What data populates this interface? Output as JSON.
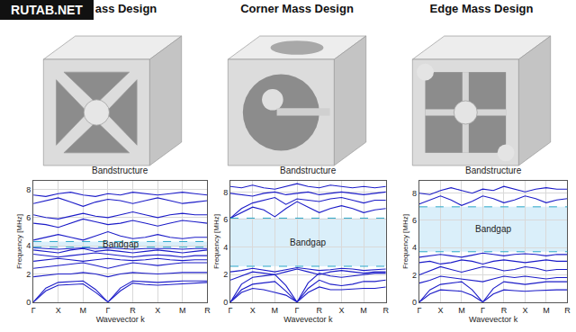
{
  "watermark": "RUTAB.NET",
  "chart_data": [
    {
      "type": "line",
      "design_title": "ass Design",
      "title": "Bandstructure",
      "x_label": "Wavevector k",
      "y_label": "Frequency [MHz]",
      "x": [
        0,
        0.5,
        1,
        1.5,
        2,
        2.5,
        3,
        3.5,
        4,
        4.5,
        5,
        5.5,
        6,
        6.5,
        7
      ],
      "xlim": [
        0,
        7
      ],
      "xticks": [
        {
          "value": 0,
          "label": "Γ"
        },
        {
          "value": 1,
          "label": "X"
        },
        {
          "value": 2,
          "label": "M"
        },
        {
          "value": 3,
          "label": "Γ"
        },
        {
          "value": 4,
          "label": "R"
        },
        {
          "value": 5,
          "label": "X"
        },
        {
          "value": 6,
          "label": "M"
        },
        {
          "value": 7,
          "label": "R"
        }
      ],
      "ylim": [
        0,
        8.6
      ],
      "yticks": [
        0,
        2,
        4,
        6,
        8
      ],
      "grid": true,
      "bandgap": {
        "label": "Bandgap",
        "range": [
          3.9,
          4.3
        ]
      },
      "series": [
        {
          "color": "#1c1cc8",
          "values": [
            0,
            0.8,
            1.2,
            1.25,
            1.3,
            0.7,
            0,
            0.8,
            1.35,
            1.25,
            1.2,
            1.25,
            1.3,
            1.35,
            1.4
          ]
        },
        {
          "color": "#1c1cc8",
          "values": [
            0,
            1.0,
            1.4,
            1.45,
            1.5,
            0.9,
            0,
            1.0,
            1.5,
            1.45,
            1.4,
            1.45,
            1.5,
            1.5,
            1.5
          ]
        },
        {
          "color": "#1c1cc8",
          "values": [
            1.8,
            1.9,
            2.0,
            2.0,
            2.1,
            2.0,
            1.8,
            2.0,
            2.1,
            2.05,
            2.0,
            2.05,
            2.1,
            2.1,
            2.1
          ]
        },
        {
          "color": "#1c1cc8",
          "values": [
            2.4,
            2.5,
            2.6,
            2.7,
            2.8,
            2.6,
            2.4,
            2.6,
            2.8,
            2.7,
            2.6,
            2.7,
            2.8,
            2.8,
            2.8
          ]
        },
        {
          "color": "#1c1cc8",
          "values": [
            2.9,
            3.0,
            3.1,
            3.0,
            2.9,
            3.0,
            3.1,
            3.0,
            2.95,
            3.0,
            3.1,
            3.0,
            2.95,
            3.0,
            3.0
          ]
        },
        {
          "color": "#1c1cc8",
          "values": [
            3.4,
            3.3,
            3.2,
            3.3,
            3.4,
            3.5,
            3.4,
            3.3,
            3.2,
            3.3,
            3.35,
            3.3,
            3.2,
            3.3,
            3.3
          ]
        },
        {
          "color": "#1c1cc8",
          "values": [
            3.7,
            3.6,
            3.5,
            3.7,
            3.8,
            3.6,
            3.7,
            3.6,
            3.5,
            3.6,
            3.7,
            3.6,
            3.5,
            3.6,
            3.7
          ]
        },
        {
          "color": "#1c1cc8",
          "values": [
            3.85,
            3.8,
            3.75,
            3.8,
            3.85,
            3.8,
            3.85,
            3.8,
            3.75,
            3.8,
            3.8,
            3.8,
            3.75,
            3.8,
            3.8
          ]
        },
        {
          "color": "#1c1cc8",
          "values": [
            4.4,
            4.6,
            4.8,
            4.6,
            4.4,
            4.7,
            5.0,
            4.7,
            4.5,
            4.6,
            4.8,
            4.6,
            4.5,
            4.6,
            4.6
          ]
        },
        {
          "color": "#1c1cc8",
          "values": [
            5.6,
            5.5,
            5.3,
            5.6,
            5.9,
            5.7,
            5.5,
            5.6,
            5.8,
            5.6,
            5.4,
            5.6,
            5.8,
            5.7,
            5.6
          ]
        },
        {
          "color": "#1c1cc8",
          "values": [
            6.2,
            6.0,
            5.9,
            6.1,
            6.3,
            6.1,
            6.0,
            6.2,
            6.4,
            6.2,
            6.0,
            6.2,
            6.3,
            6.2,
            6.2
          ]
        },
        {
          "color": "#1c1cc8",
          "values": [
            7.0,
            7.2,
            7.4,
            7.1,
            6.8,
            7.1,
            7.3,
            7.2,
            7.0,
            7.2,
            7.4,
            7.2,
            7.0,
            7.1,
            7.2
          ]
        },
        {
          "color": "#1c1cc8",
          "values": [
            7.6,
            7.5,
            7.7,
            7.8,
            7.6,
            7.5,
            7.7,
            7.6,
            7.8,
            7.7,
            7.6,
            7.7,
            7.8,
            7.7,
            7.6
          ]
        }
      ]
    },
    {
      "type": "line",
      "design_title": "Corner Mass Design",
      "title": "Bandstructure",
      "x_label": "Wavevector k",
      "y_label": "Frequency [MHz]",
      "x": [
        0,
        0.5,
        1,
        1.5,
        2,
        2.5,
        3,
        3.5,
        4,
        4.5,
        5,
        5.5,
        6,
        6.5,
        7
      ],
      "xlim": [
        0,
        7
      ],
      "xticks": [
        {
          "value": 0,
          "label": "Γ"
        },
        {
          "value": 1,
          "label": "X"
        },
        {
          "value": 2,
          "label": "M"
        },
        {
          "value": 3,
          "label": "Γ"
        },
        {
          "value": 4,
          "label": "R"
        },
        {
          "value": 5,
          "label": "X"
        },
        {
          "value": 6,
          "label": "M"
        },
        {
          "value": 7,
          "label": "R"
        }
      ],
      "ylim": [
        0,
        8.8
      ],
      "yticks": [
        0,
        2,
        4,
        6,
        8
      ],
      "grid": true,
      "bandgap": {
        "label": "Bandgap",
        "range": [
          2.6,
          6.1
        ]
      },
      "series": [
        {
          "color": "#1c1cc8",
          "values": [
            0,
            0.7,
            1.0,
            0.9,
            0.7,
            0.5,
            0,
            0.7,
            1.1,
            0.9,
            0.9,
            0.95,
            1.0,
            1.0,
            1.1
          ]
        },
        {
          "color": "#1c1cc8",
          "values": [
            0,
            0.9,
            1.3,
            1.4,
            1.5,
            0.8,
            0,
            1.0,
            1.6,
            1.3,
            1.2,
            1.3,
            1.5,
            1.5,
            1.6
          ]
        },
        {
          "color": "#1c1cc8",
          "values": [
            0,
            1.3,
            1.8,
            1.9,
            2.0,
            1.2,
            0,
            1.4,
            2.1,
            1.9,
            1.8,
            1.9,
            2.0,
            2.1,
            2.1
          ]
        },
        {
          "color": "#1c1cc8",
          "values": [
            1.6,
            1.9,
            2.2,
            2.1,
            2.0,
            2.2,
            2.4,
            2.2,
            2.0,
            2.2,
            2.3,
            2.2,
            2.1,
            2.2,
            2.2
          ]
        },
        {
          "color": "#1c1cc8",
          "values": [
            2.2,
            2.3,
            2.45,
            2.3,
            2.2,
            2.35,
            2.5,
            2.4,
            2.3,
            2.35,
            2.45,
            2.4,
            2.3,
            2.35,
            2.4
          ]
        },
        {
          "color": "#1c1cc8",
          "values": [
            6.1,
            6.5,
            6.9,
            6.7,
            6.2,
            6.8,
            7.3,
            6.9,
            6.5,
            6.8,
            7.0,
            6.8,
            6.5,
            6.7,
            6.8
          ]
        },
        {
          "color": "#1c1cc8",
          "values": [
            6.1,
            6.8,
            7.2,
            7.4,
            7.6,
            7.1,
            7.5,
            7.4,
            7.3,
            7.5,
            7.6,
            7.4,
            7.2,
            7.4,
            7.4
          ]
        },
        {
          "color": "#1c1cc8",
          "values": [
            7.9,
            7.8,
            7.7,
            7.9,
            8.0,
            7.8,
            7.9,
            8.0,
            7.8,
            7.9,
            8.0,
            7.9,
            7.8,
            7.9,
            8.0
          ]
        },
        {
          "color": "#1c1cc8",
          "values": [
            8.4,
            8.3,
            8.5,
            8.3,
            8.2,
            8.4,
            8.6,
            8.4,
            8.3,
            8.5,
            8.4,
            8.3,
            8.4,
            8.3,
            8.4
          ]
        }
      ]
    },
    {
      "type": "line",
      "design_title": "Edge Mass Design",
      "title": "Bandstructure",
      "x_label": "Wavevector k",
      "y_label": "Frequency [MHz]",
      "x": [
        0,
        0.5,
        1,
        1.5,
        2,
        2.5,
        3,
        3.5,
        4,
        4.5,
        5,
        5.5,
        6,
        6.5,
        7
      ],
      "xlim": [
        0,
        7
      ],
      "xticks": [
        {
          "value": 0,
          "label": "Γ"
        },
        {
          "value": 1,
          "label": "X"
        },
        {
          "value": 2,
          "label": "M"
        },
        {
          "value": 3,
          "label": "Γ"
        },
        {
          "value": 4,
          "label": "R"
        },
        {
          "value": 5,
          "label": "X"
        },
        {
          "value": 6,
          "label": "M"
        },
        {
          "value": 7,
          "label": "R"
        }
      ],
      "ylim": [
        0,
        8.9
      ],
      "yticks": [
        0,
        2,
        4,
        6,
        8
      ],
      "grid": true,
      "bandgap": {
        "label": "Bandgap",
        "range": [
          3.7,
          7.0
        ]
      },
      "series": [
        {
          "color": "#1c1cc8",
          "values": [
            0,
            0.6,
            0.9,
            0.85,
            0.8,
            0.5,
            0,
            0.6,
            0.9,
            0.85,
            0.8,
            0.85,
            0.9,
            0.9,
            0.9
          ]
        },
        {
          "color": "#1c1cc8",
          "values": [
            0,
            0.9,
            1.3,
            1.4,
            1.5,
            0.9,
            0,
            1.0,
            1.5,
            1.4,
            1.3,
            1.4,
            1.5,
            1.5,
            1.5
          ]
        },
        {
          "color": "#1c1cc8",
          "values": [
            1.4,
            1.6,
            1.9,
            1.8,
            1.7,
            1.6,
            1.5,
            1.7,
            1.9,
            1.8,
            1.9,
            1.8,
            1.7,
            1.8,
            1.8
          ]
        },
        {
          "color": "#1c1cc8",
          "values": [
            2.0,
            2.3,
            2.6,
            2.4,
            2.2,
            2.4,
            2.6,
            2.5,
            2.3,
            2.4,
            2.6,
            2.5,
            2.3,
            2.4,
            2.4
          ]
        },
        {
          "color": "#1c1cc8",
          "values": [
            2.9,
            3.0,
            2.8,
            2.9,
            3.1,
            3.0,
            2.8,
            3.0,
            3.1,
            3.0,
            2.9,
            3.0,
            3.1,
            3.0,
            3.0
          ]
        },
        {
          "color": "#1c1cc8",
          "values": [
            3.3,
            3.4,
            3.5,
            3.4,
            3.3,
            3.45,
            3.6,
            3.5,
            3.4,
            3.5,
            3.55,
            3.5,
            3.4,
            3.5,
            3.5
          ]
        },
        {
          "color": "#1c1cc8",
          "values": [
            7.2,
            7.5,
            7.8,
            7.5,
            7.1,
            7.4,
            7.8,
            7.6,
            7.3,
            7.5,
            7.8,
            7.6,
            7.3,
            7.5,
            7.6
          ]
        },
        {
          "color": "#1c1cc8",
          "values": [
            8.0,
            7.9,
            8.2,
            8.4,
            8.2,
            8.0,
            8.3,
            8.2,
            8.5,
            8.3,
            8.1,
            8.3,
            8.4,
            8.3,
            8.3
          ]
        }
      ]
    }
  ]
}
